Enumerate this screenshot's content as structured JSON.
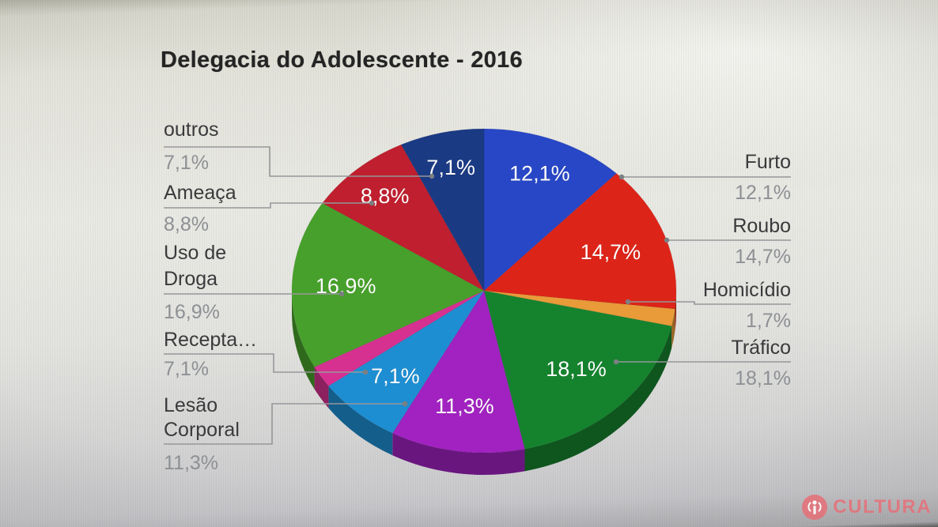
{
  "chart_data": {
    "type": "pie",
    "three_d": true,
    "title": "Delegacia do Adolescente - 2016",
    "legend_position": "outside-callouts",
    "start_angle_deg": 0,
    "direction": "clockwise",
    "value_unit": "%",
    "decimal_separator": ",",
    "slices": [
      {
        "label": "Furto",
        "value": 12.1,
        "display_value": "12,1%",
        "color": "#2847c6",
        "callout_side": "right"
      },
      {
        "label": "Roubo",
        "value": 14.7,
        "display_value": "14,7%",
        "color": "#dd2418",
        "callout_side": "right"
      },
      {
        "label": "Homicídio",
        "value": 1.7,
        "display_value": "1,7%",
        "color": "#e89b38",
        "callout_side": "right"
      },
      {
        "label": "Tráfico",
        "value": 18.1,
        "display_value": "18,1%",
        "color": "#15832e",
        "callout_side": "right"
      },
      {
        "label": "Lesão Corporal",
        "value": 11.3,
        "display_value": "11,3%",
        "color": "#a122c0",
        "callout_side": "left"
      },
      {
        "label": "Recepta…",
        "value": 7.1,
        "display_value": "7,1%",
        "color": "#1e8ed2",
        "callout_side": "left"
      },
      {
        "label": "",
        "value": 2.2,
        "display_value": "",
        "color": "#d63090",
        "callout_side": "none"
      },
      {
        "label": "Uso de Droga",
        "value": 16.9,
        "display_value": "16,9%",
        "color": "#47a02b",
        "callout_side": "left"
      },
      {
        "label": "Ameaça",
        "value": 8.8,
        "display_value": "8,8%",
        "color": "#bf1f2e",
        "callout_side": "left"
      },
      {
        "label": "outros",
        "value": 7.1,
        "display_value": "7,1%",
        "color": "#1b3a84",
        "callout_side": "left"
      }
    ]
  },
  "watermark": {
    "text": "CULTURA",
    "icon": "radio-broadcast-icon",
    "color": "#e4737b"
  }
}
